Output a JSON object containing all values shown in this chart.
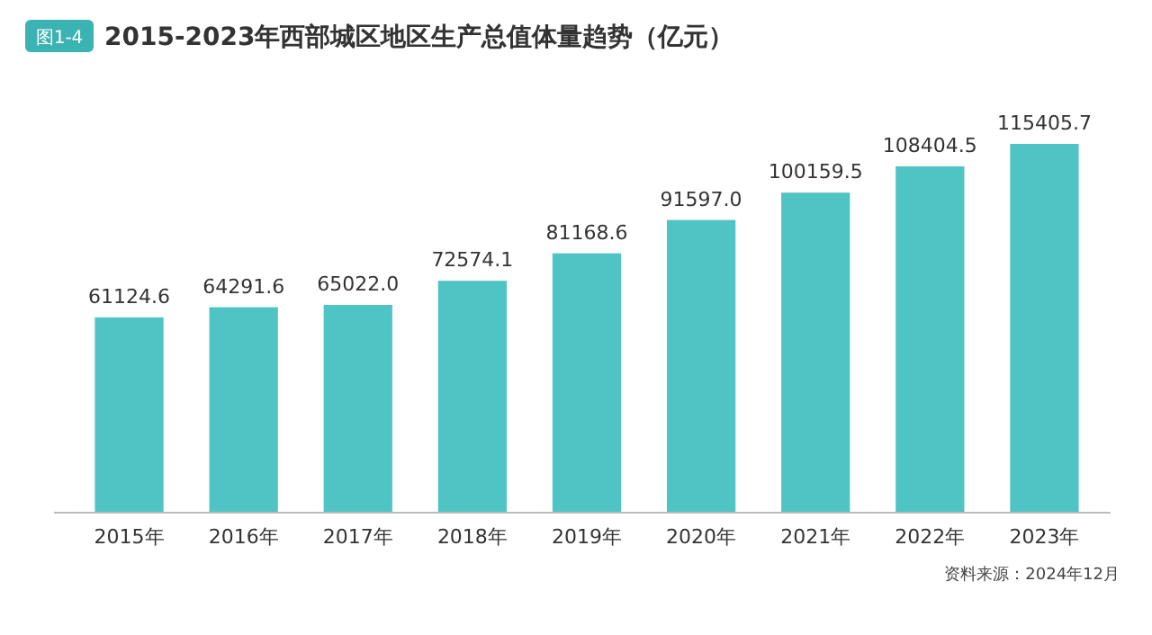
{
  "chart_data": {
    "type": "bar",
    "title": "2015-2023年西部城区地区生产总值体量趋势（亿元）",
    "annotations": [
      "图1-4",
      "资料来源：2024年12月"
    ],
    "categories": [
      "2015年",
      "2016年",
      "2017年",
      "2018年",
      "2019年",
      "2020年",
      "2021年",
      "2022年",
      "2023年"
    ],
    "values": [
      61124.6,
      64291.6,
      65022.0,
      72574.1,
      81168.6,
      91597.0,
      100159.5,
      108404.5,
      115405.7
    ],
    "value_labels": [
      "61124.6",
      "64291.6",
      "65022.0",
      "72574.1",
      "81168.6",
      "91597.0",
      "100159.5",
      "108404.5",
      "115405.7"
    ],
    "color": "#4fc4c4"
  }
}
